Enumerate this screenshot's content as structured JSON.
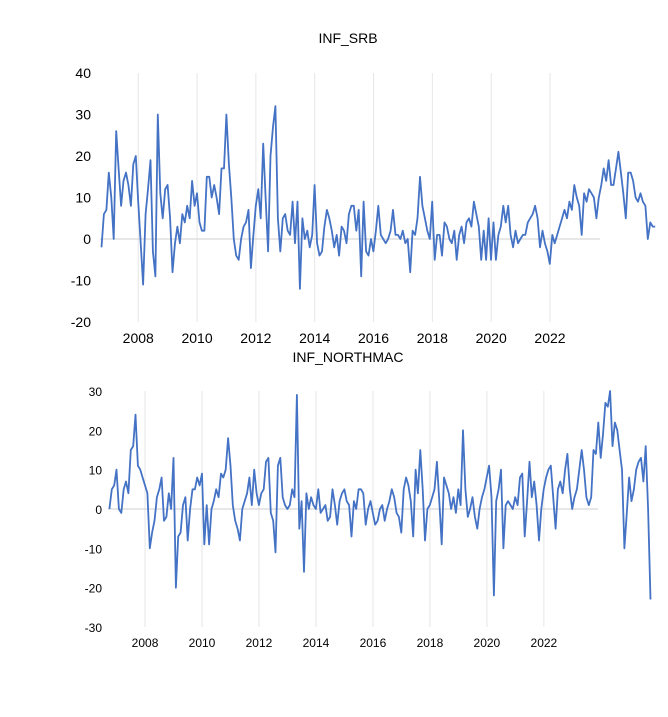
{
  "colors": {
    "line": "#4472c4",
    "grid": "#e6e6e6",
    "zero": "#cfcfcf",
    "text": "#000000"
  },
  "chart_data": [
    {
      "type": "line",
      "title": "INF_SRB",
      "xlabel": "",
      "ylabel": "",
      "ylim": [
        -20,
        40
      ],
      "yticks": [
        -20,
        -10,
        0,
        10,
        20,
        30,
        40
      ],
      "xlim": [
        2006.7,
        2023.7
      ],
      "xticks": [
        2008,
        2010,
        2012,
        2014,
        2016,
        2018,
        2020,
        2022
      ],
      "series": [
        {
          "name": "INF_SRB",
          "x_start": 2006.75,
          "x_step": 0.0833,
          "values": [
            -2,
            6,
            7,
            16,
            10,
            0,
            26,
            17,
            8,
            14,
            16,
            13,
            8,
            18,
            20,
            9,
            -1,
            -11,
            6,
            12,
            19,
            -3,
            -9,
            30,
            11,
            5,
            12,
            13,
            5,
            -8,
            -1,
            3,
            -1,
            6,
            4,
            8,
            5,
            14,
            8,
            11,
            4,
            2,
            2,
            15,
            15,
            10,
            13,
            10,
            6,
            17,
            17,
            30,
            18,
            10,
            0,
            -4,
            -5,
            0,
            3,
            4,
            7,
            -7,
            1,
            8,
            12,
            5,
            23,
            10,
            -3,
            20,
            27,
            32,
            5,
            -3,
            5,
            6,
            2,
            1,
            9,
            -1,
            9,
            -12,
            5,
            0,
            2,
            -2,
            1,
            13,
            -1,
            -4,
            -3,
            3,
            7,
            5,
            2,
            -2,
            1,
            -4,
            3,
            2,
            -1,
            6,
            8,
            8,
            2,
            7,
            -9,
            9,
            -3,
            -4,
            0,
            -3,
            2,
            8,
            1,
            0,
            -1,
            0,
            2,
            7,
            1,
            1,
            0,
            2,
            -1,
            0,
            -8,
            2,
            1,
            5,
            15,
            8,
            5,
            2,
            0,
            9,
            -5,
            1,
            1,
            -4,
            4,
            3,
            0,
            -1,
            2,
            -5,
            1,
            3,
            -1,
            4,
            5,
            3,
            9,
            6,
            3,
            -5,
            2,
            -5,
            5,
            -5,
            4,
            -5,
            1,
            3,
            8,
            4,
            8,
            1,
            -2,
            2,
            -1,
            0,
            1,
            1,
            4,
            5,
            6,
            8,
            5,
            -2,
            2,
            -1,
            -3,
            -6,
            1,
            -1,
            1,
            3,
            5,
            7,
            5,
            9,
            7,
            13,
            10,
            8,
            1,
            11,
            9,
            12,
            11,
            10,
            5,
            10,
            13,
            17,
            14,
            19,
            13,
            13,
            17,
            21,
            16,
            11,
            5,
            16,
            16,
            14,
            10,
            9,
            11,
            9,
            8,
            0,
            4,
            3,
            3
          ]
        }
      ]
    },
    {
      "type": "line",
      "title": "INF_NORTHMAC",
      "xlabel": "",
      "ylabel": "",
      "ylim": [
        -30,
        30
      ],
      "yticks": [
        -30,
        -20,
        -10,
        0,
        10,
        20,
        30
      ],
      "xlim": [
        2006.7,
        2023.9
      ],
      "xticks": [
        2008,
        2010,
        2012,
        2014,
        2016,
        2018,
        2020,
        2022
      ],
      "series": [
        {
          "name": "INF_NORTHMAC",
          "x_start": 2006.75,
          "x_step": 0.0833,
          "values": [
            0,
            5,
            6,
            10,
            0,
            -1,
            5,
            7,
            4,
            15,
            16,
            24,
            11,
            10,
            8,
            6,
            4,
            -10,
            -6,
            -3,
            3,
            5,
            8,
            -3,
            -2,
            4,
            0,
            13,
            -20,
            -7,
            -6,
            1,
            3,
            -8,
            0,
            5,
            5,
            8,
            6,
            9,
            -9,
            1,
            -9,
            0,
            2,
            5,
            3,
            9,
            8,
            10,
            18,
            11,
            1,
            -3,
            -5,
            -8,
            0,
            2,
            4,
            8,
            1,
            10,
            4,
            1,
            4,
            5,
            12,
            13,
            -1,
            -3,
            -11,
            11,
            13,
            3,
            1,
            0,
            1,
            5,
            3,
            29,
            -5,
            2,
            -16,
            4,
            0,
            3,
            1,
            0,
            5,
            -1,
            0,
            1,
            -3,
            -2,
            5,
            1,
            -4,
            2,
            4,
            5,
            2,
            1,
            -7,
            2,
            0,
            5,
            5,
            4,
            -4,
            0,
            2,
            -1,
            -4,
            -3,
            0,
            1,
            -3,
            0,
            2,
            5,
            3,
            -1,
            -2,
            -6,
            5,
            8,
            6,
            2,
            -7,
            10,
            4,
            15,
            5,
            -8,
            0,
            1,
            3,
            5,
            12,
            2,
            -9,
            8,
            6,
            4,
            0,
            3,
            -1,
            5,
            1,
            20,
            5,
            -2,
            0,
            3,
            -2,
            -5,
            0,
            3,
            5,
            8,
            11,
            3,
            -22,
            2,
            5,
            10,
            -10,
            1,
            2,
            1,
            0,
            3,
            1,
            8,
            9,
            -7,
            2,
            12,
            3,
            7,
            1,
            -8,
            0,
            5,
            8,
            10,
            11,
            3,
            -5,
            5,
            7,
            4,
            10,
            14,
            5,
            0,
            3,
            5,
            10,
            15,
            10,
            3,
            1,
            3,
            15,
            14,
            22,
            13,
            19,
            27,
            26,
            30,
            16,
            22,
            20,
            15,
            10,
            -10,
            -1,
            8,
            2,
            5,
            10,
            12,
            13,
            7,
            16,
            0,
            -23
          ]
        }
      ]
    }
  ]
}
